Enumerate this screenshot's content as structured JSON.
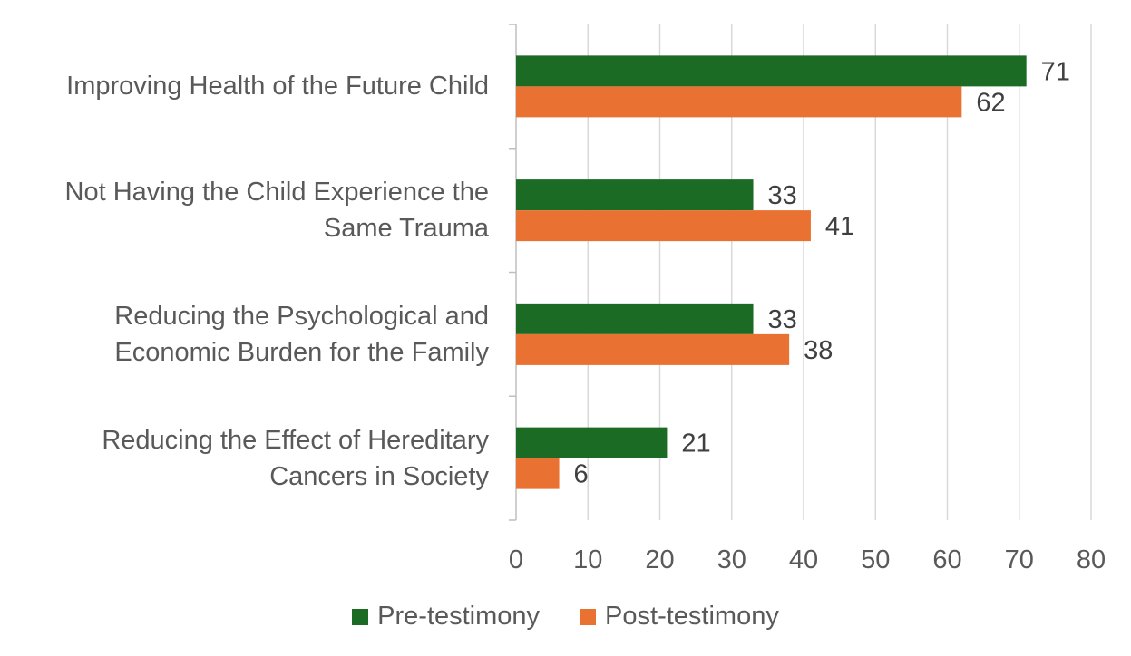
{
  "chart_data": {
    "type": "bar",
    "orientation": "horizontal",
    "title": "",
    "xlabel": "",
    "ylabel": "",
    "categories": [
      "Improving Health of the Future Child",
      "Not Having the Child Experience the\nSame Trauma",
      "Reducing the Psychological and\nEconomic Burden for the Family",
      "Reducing the Effect of Hereditary\nCancers in Society"
    ],
    "series": [
      {
        "name": "Pre-testimony",
        "values": [
          71,
          33,
          33,
          21
        ],
        "color": "#1b6b24"
      },
      {
        "name": "Post-testimony",
        "values": [
          62,
          41,
          38,
          6
        ],
        "color": "#e97132"
      }
    ],
    "xlim": [
      0,
      80
    ],
    "xticks": [
      "0",
      "10",
      "20",
      "30",
      "40",
      "50",
      "60",
      "70",
      "80"
    ],
    "grid": true,
    "data_labels": true,
    "legend_position": "bottom"
  }
}
